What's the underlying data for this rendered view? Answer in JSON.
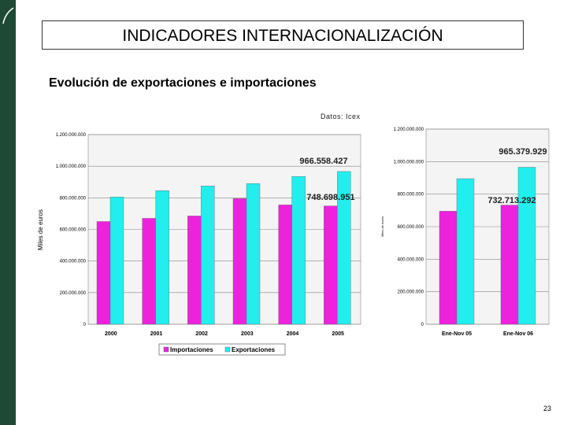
{
  "slide": {
    "title": "INDICADORES INTERNACIONALIZACIÓN",
    "subtitle": "Evolución de exportaciones e importaciones",
    "source": "Datos: Icex",
    "page_number": "23",
    "colors": {
      "sidebar": "#1e4a34",
      "imports": "#ee22dd",
      "exports": "#22eeee"
    }
  },
  "chart_data": [
    {
      "type": "bar",
      "categories": [
        "2000",
        "2001",
        "2002",
        "2003",
        "2004",
        "2005"
      ],
      "series": [
        {
          "name": "Importaciones",
          "values": [
            650000000,
            670000000,
            685000000,
            795000000,
            755000000,
            748698951
          ]
        },
        {
          "name": "Exportaciones",
          "values": [
            805000000,
            845000000,
            875000000,
            890000000,
            935000000,
            966558427
          ]
        }
      ],
      "ylabel": "Miles de euros",
      "ylim": [
        0,
        1200000000
      ],
      "yticks": [
        "0",
        "200.000.000",
        "400.000.000",
        "600.000.000",
        "800.000.000",
        "1.000.000.000",
        "1.200.000.000"
      ],
      "annotations": [
        "966.558.427",
        "748.698.951"
      ],
      "legend": [
        "Importaciones",
        "Exportaciones"
      ],
      "legend_position": "bottom",
      "grid": true
    },
    {
      "type": "bar",
      "categories": [
        "Ene-Nov 05",
        "Ene-Nov 06"
      ],
      "series": [
        {
          "name": "Importaciones",
          "values": [
            695000000,
            732713292
          ]
        },
        {
          "name": "Exportaciones",
          "values": [
            895000000,
            965379929
          ]
        }
      ],
      "ylabel": "Miles de euros",
      "ylim": [
        0,
        1200000000
      ],
      "yticks": [
        "0",
        "200.000.000",
        "400.000.000",
        "600.000.000",
        "800.000.000",
        "1.000.000.000",
        "1.200.000.000"
      ],
      "annotations": [
        "965.379.929",
        "732.713.292"
      ],
      "grid": true
    }
  ]
}
